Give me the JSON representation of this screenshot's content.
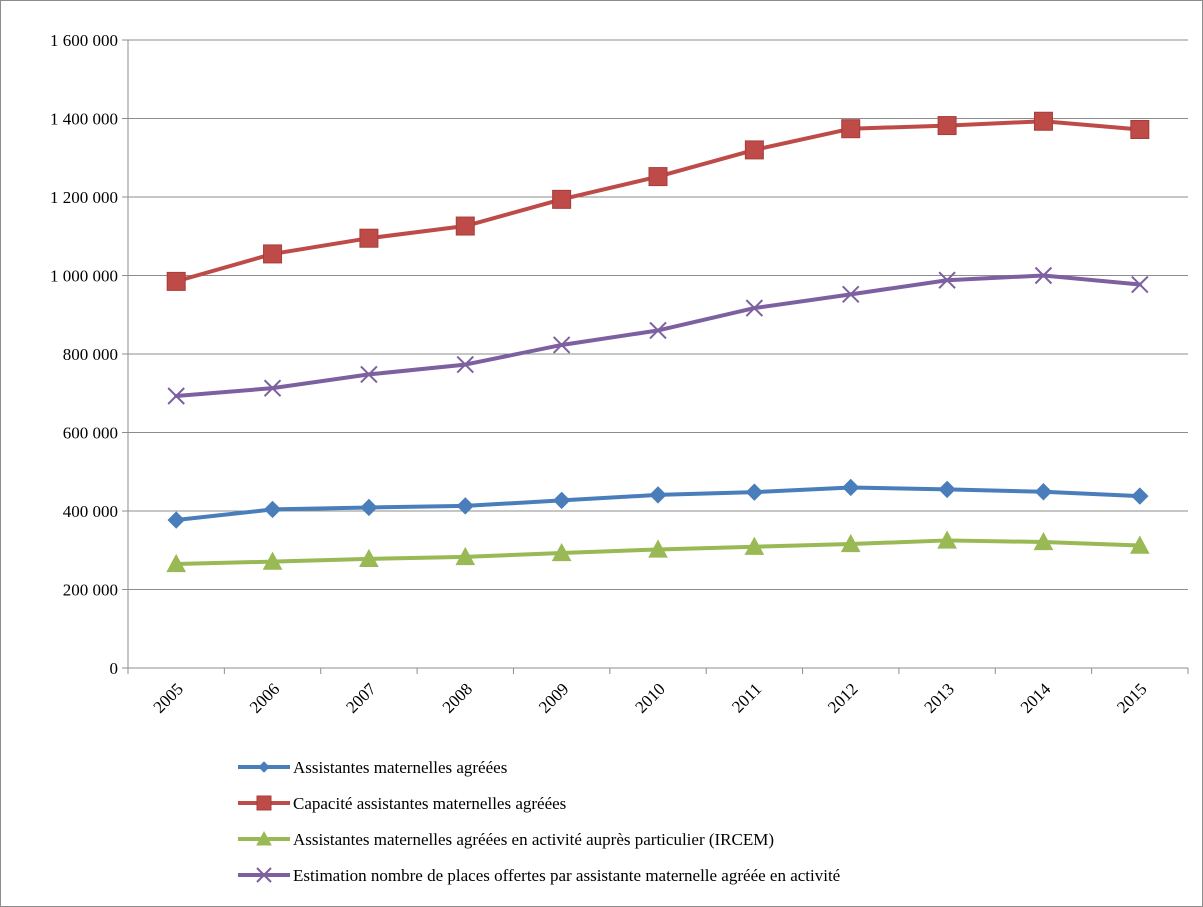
{
  "chart_data": {
    "type": "line",
    "title": "",
    "xlabel": "",
    "ylabel": "",
    "categories": [
      "2005",
      "2006",
      "2007",
      "2008",
      "2009",
      "2010",
      "2011",
      "2012",
      "2013",
      "2014",
      "2015"
    ],
    "ylim": [
      0,
      1600000
    ],
    "yticks": [
      0,
      200000,
      400000,
      600000,
      800000,
      1000000,
      1200000,
      1400000,
      1600000
    ],
    "ytick_labels": [
      "0",
      "200 000",
      "400 000",
      "600 000",
      "800 000",
      "1 000 000",
      "1 200 000",
      "1 400 000",
      "1 600 000"
    ],
    "grid": "horizontal",
    "legend_position": "bottom",
    "series": [
      {
        "name": "Assistantes maternelles agréées",
        "color": "#4a7ebb",
        "marker": "diamond",
        "values": [
          377000,
          404000,
          409000,
          413000,
          427000,
          441000,
          448000,
          460000,
          455000,
          449000,
          438000
        ]
      },
      {
        "name": "Capacité assistantes maternelles agréées",
        "color": "#be4b48",
        "marker": "square",
        "values": [
          985000,
          1055000,
          1095000,
          1126000,
          1194000,
          1252000,
          1320000,
          1374000,
          1382000,
          1393000,
          1372000
        ]
      },
      {
        "name": "Assistantes maternelles agréées en activité auprès particulier (IRCEM)",
        "color": "#98b954",
        "marker": "triangle",
        "values": [
          265000,
          271000,
          278000,
          283000,
          293000,
          302000,
          309000,
          316000,
          325000,
          321000,
          312000
        ]
      },
      {
        "name": "Estimation nombre de places offertes par assistante maternelle agréée en activité",
        "color": "#7d60a0",
        "marker": "x",
        "values": [
          693000,
          713000,
          748000,
          773000,
          823000,
          860000,
          917000,
          952000,
          988000,
          1000000,
          977000
        ]
      }
    ]
  }
}
